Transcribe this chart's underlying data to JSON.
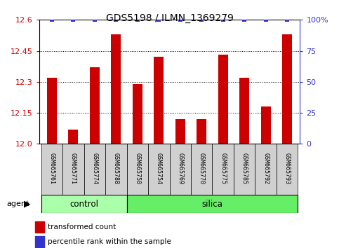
{
  "title": "GDS5198 / ILMN_1369279",
  "samples": [
    "GSM665761",
    "GSM665771",
    "GSM665774",
    "GSM665788",
    "GSM665750",
    "GSM665754",
    "GSM665769",
    "GSM665770",
    "GSM665775",
    "GSM665785",
    "GSM665792",
    "GSM665793"
  ],
  "values": [
    12.32,
    12.07,
    12.37,
    12.53,
    12.29,
    12.42,
    12.12,
    12.12,
    12.43,
    12.32,
    12.18,
    12.53
  ],
  "percentiles": [
    100,
    100,
    100,
    100,
    100,
    100,
    100,
    100,
    100,
    100,
    100,
    100
  ],
  "control_count": 4,
  "silica_count": 8,
  "ylim_left": [
    12.0,
    12.6
  ],
  "ylim_right": [
    0,
    100
  ],
  "yticks_left": [
    12.0,
    12.15,
    12.3,
    12.45,
    12.6
  ],
  "yticks_right": [
    0,
    25,
    50,
    75,
    100
  ],
  "bar_color": "#cc0000",
  "dot_color": "#3333cc",
  "control_color": "#aaffaa",
  "silica_color": "#66ee66",
  "label_bg_color": "#d0d0d0",
  "legend_bar_label": "transformed count",
  "legend_dot_label": "percentile rank within the sample",
  "agent_label": "agent",
  "control_label": "control",
  "silica_label": "silica",
  "title_fontsize": 10,
  "tick_fontsize": 8,
  "bar_width": 0.45
}
